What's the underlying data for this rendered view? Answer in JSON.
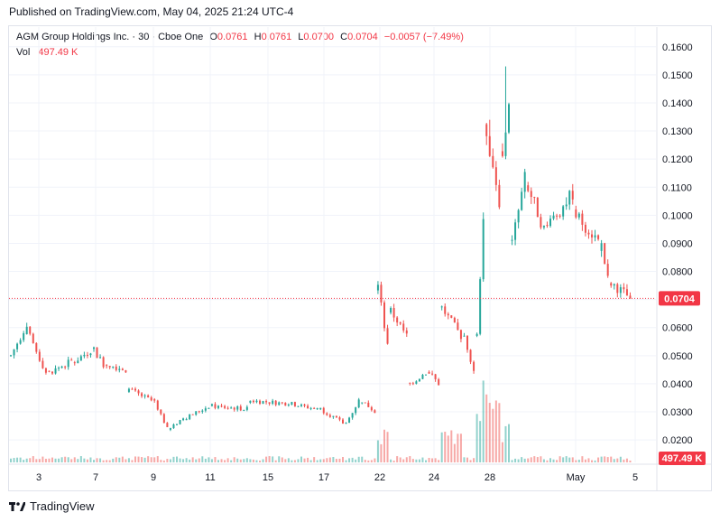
{
  "header": {
    "published": "Published on TradingView.com, May 04, 2025 21:24 UTC-4"
  },
  "legend": {
    "symbol": "AGM Group Holdings Inc. · 30 · Cboe One",
    "o_label": "O",
    "o_value": "0.0761",
    "h_label": "H",
    "h_value": "0.0761",
    "l_label": "L",
    "l_value": "0.0700",
    "c_label": "C",
    "c_value": "0.0704",
    "change": "−0.0057 (−7.49%)",
    "vol_label": "Vol",
    "vol_value": "497.49 K"
  },
  "footer": {
    "brand": "TradingView"
  },
  "colors": {
    "up": "#26a69a",
    "down": "#ef5350",
    "last_price": "#f23645",
    "grid": "#f0f3fa"
  },
  "chart_data": {
    "type": "candlestick",
    "y_axis": {
      "ticks": [
        "0.1600",
        "0.1500",
        "0.1400",
        "0.1300",
        "0.1200",
        "0.1100",
        "0.1000",
        "0.0900",
        "0.0800",
        "0.0700",
        "0.0600",
        "0.0500",
        "0.0400",
        "0.0300",
        "0.0200"
      ],
      "range": [
        0.012,
        0.167
      ]
    },
    "x_axis": {
      "ticks": [
        "3",
        "7",
        "9",
        "11",
        "15",
        "17",
        "22",
        "24",
        "28",
        "May",
        "5"
      ]
    },
    "last_price_label": "0.0704",
    "volume_label": "497.49 K",
    "grid": true,
    "segments": [
      {
        "from": 0.05,
        "to": 0.059,
        "n": 5
      },
      {
        "from": 0.059,
        "to": 0.044,
        "n": 7
      },
      {
        "from": 0.044,
        "to": 0.048,
        "n": 8
      },
      {
        "from": 0.048,
        "to": 0.052,
        "n": 6
      },
      {
        "from": 0.052,
        "to": 0.047,
        "n": 4
      },
      {
        "from": 0.047,
        "to": 0.045,
        "n": 7
      },
      {
        "from": 0.038,
        "to": 0.034,
        "n": 8
      },
      {
        "from": 0.034,
        "to": 0.024,
        "n": 5
      },
      {
        "from": 0.024,
        "to": 0.028,
        "n": 5
      },
      {
        "from": 0.028,
        "to": 0.032,
        "n": 8
      },
      {
        "from": 0.032,
        "to": 0.031,
        "n": 12
      },
      {
        "from": 0.034,
        "to": 0.033,
        "n": 12
      },
      {
        "from": 0.033,
        "to": 0.031,
        "n": 10
      },
      {
        "from": 0.031,
        "to": 0.026,
        "n": 8
      },
      {
        "from": 0.026,
        "to": 0.034,
        "n": 5
      },
      {
        "from": 0.034,
        "to": 0.03,
        "n": 5
      },
      {
        "from": 0.075,
        "to": 0.053,
        "n": 4
      },
      {
        "from": 0.066,
        "to": 0.057,
        "n": 6
      },
      {
        "from": 0.04,
        "to": 0.044,
        "n": 6
      },
      {
        "from": 0.044,
        "to": 0.04,
        "n": 4
      },
      {
        "from": 0.067,
        "to": 0.057,
        "n": 7
      },
      {
        "from": 0.057,
        "to": 0.045,
        "n": 4
      },
      {
        "from": 0.057,
        "to": 0.1,
        "n": 3
      },
      {
        "from": 0.13,
        "to": 0.105,
        "n": 5
      },
      {
        "from": 0.12,
        "to": 0.141,
        "n": 3
      },
      {
        "from": 0.09,
        "to": 0.113,
        "n": 5
      },
      {
        "from": 0.11,
        "to": 0.095,
        "n": 6
      },
      {
        "from": 0.096,
        "to": 0.108,
        "n": 9
      },
      {
        "from": 0.1,
        "to": 0.091,
        "n": 8
      },
      {
        "from": 0.089,
        "to": 0.077,
        "n": 3
      },
      {
        "from": 0.076,
        "to": 0.0704,
        "n": 7
      }
    ],
    "spikes": [
      {
        "segment": 23,
        "high": 0.134
      },
      {
        "segment": 24,
        "high": 0.153
      }
    ],
    "volume_spikes": [
      {
        "segment": 16,
        "value": 0.35
      },
      {
        "segment": 22,
        "value": 0.95
      },
      {
        "segment": 23,
        "value": 0.7
      },
      {
        "segment": 24,
        "value": 0.45
      },
      {
        "segment": 20,
        "value": 0.3
      }
    ]
  }
}
